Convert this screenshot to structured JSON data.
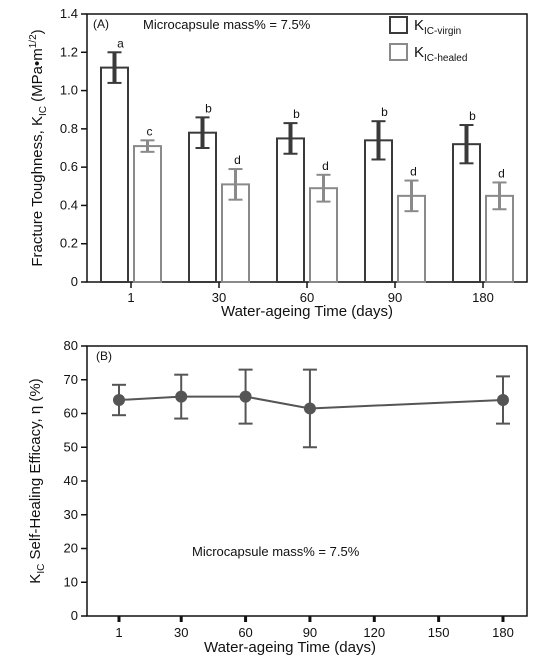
{
  "chart_data": [
    {
      "type": "bar",
      "panel_label": "(A)",
      "annotation": "Microcapsule mass% = 7.5%",
      "categories": [
        "1",
        "30",
        "60",
        "90",
        "180"
      ],
      "series": [
        {
          "name": "K",
          "name_sub": "IC-virgin",
          "color": "#3a3a3a",
          "values": [
            1.12,
            0.78,
            0.75,
            0.74,
            0.72
          ],
          "errors": [
            0.08,
            0.08,
            0.08,
            0.1,
            0.1
          ],
          "letters": [
            "a",
            "b",
            "b",
            "b",
            "b"
          ]
        },
        {
          "name": "K",
          "name_sub": "IC-healed",
          "color": "#8a8a8a",
          "values": [
            0.71,
            0.51,
            0.49,
            0.45,
            0.45
          ],
          "errors": [
            0.03,
            0.08,
            0.07,
            0.08,
            0.07
          ],
          "letters": [
            "c",
            "d",
            "d",
            "d",
            "d"
          ]
        }
      ],
      "xlabel": "Water-ageing Time  (days)",
      "ylabel": "Fracture Toughness, K",
      "ylabel_sub": "IC",
      "ylabel_unit": "(MPa•m",
      "ylabel_unit_sup": "1/2",
      "ylabel_unit_end": ")",
      "ylim": [
        0,
        1.4
      ],
      "yticks": [
        "0",
        "0.2",
        "0.4",
        "0.6",
        "0.8",
        "1.0",
        "1.2",
        "1.4"
      ],
      "legend_position": "top-right",
      "grid": false
    },
    {
      "type": "line",
      "panel_label": "(B)",
      "annotation": "Microcapsule mass% = 7.5%",
      "x": [
        1,
        30,
        60,
        90,
        180
      ],
      "y": [
        64,
        65,
        65,
        61.5,
        64
      ],
      "errors": [
        4.5,
        6.5,
        8,
        11.5,
        7
      ],
      "color": "#555555",
      "xticks": [
        "1",
        "30",
        "60",
        "90",
        "120",
        "150",
        "180"
      ],
      "xtick_values": [
        1,
        30,
        60,
        90,
        120,
        150,
        180
      ],
      "yticks": [
        "0",
        "10",
        "20",
        "30",
        "40",
        "50",
        "60",
        "70",
        "80"
      ],
      "ylim": [
        0,
        80
      ],
      "xlabel": "Water-ageing Time  (days)",
      "ylabel_prefix": "K",
      "ylabel_sub": "IC",
      "ylabel_rest": " Self-Healing Efficacy, η  (%)",
      "grid": false
    }
  ]
}
